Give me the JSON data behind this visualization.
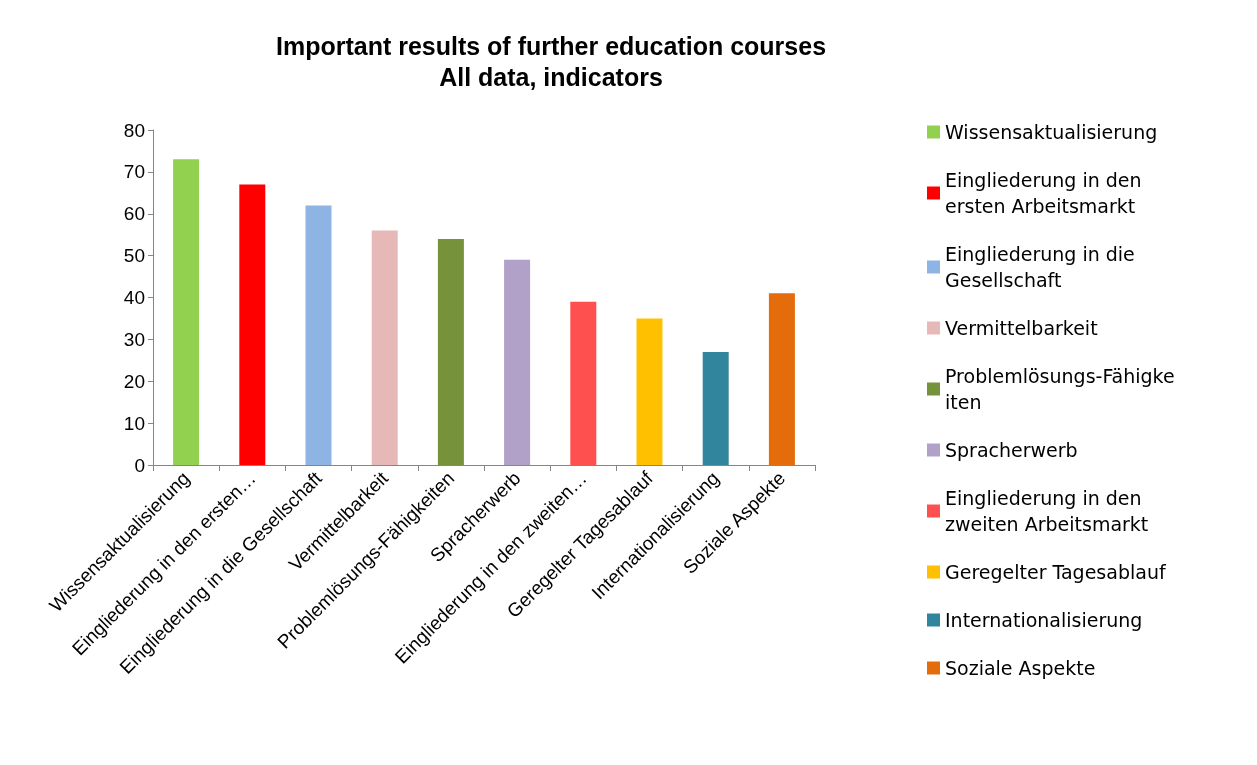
{
  "chart_data": {
    "type": "bar",
    "title": "Important results of further education courses",
    "subtitle": "All data, indicators",
    "categories": [
      "Wissensaktualisierung",
      "Eingliederung in den ersten…",
      "Eingliederung in die Gesellschaft",
      "Vermittelbarkeit",
      "Problemlösungs-Fähigkeiten",
      "Spracherwerb",
      "Eingliederung in den zweiten…",
      "Geregelter Tagesablauf",
      "Internationalisierung",
      "Soziale Aspekte"
    ],
    "stacked": true,
    "series": [
      {
        "name": "Wissensaktualisierung",
        "color": "#92d050",
        "values": [
          73,
          null,
          null,
          null,
          null,
          null,
          null,
          null,
          null,
          null
        ]
      },
      {
        "name": "Eingliederung in den ersten Arbeitsmarkt",
        "color": "#ff0000",
        "values": [
          null,
          67,
          null,
          null,
          null,
          null,
          null,
          null,
          null,
          null
        ]
      },
      {
        "name": "Eingliederung in die Gesellschaft",
        "color": "#8db4e2",
        "values": [
          null,
          null,
          62,
          null,
          null,
          null,
          null,
          null,
          null,
          null
        ]
      },
      {
        "name": "Vermittelbarkeit",
        "color": "#e6b9b8",
        "values": [
          null,
          null,
          null,
          56,
          null,
          null,
          null,
          null,
          null,
          null
        ]
      },
      {
        "name": "Problemlösungs-Fähigkeiten",
        "color": "#76933c",
        "values": [
          null,
          null,
          null,
          null,
          54,
          null,
          null,
          null,
          null,
          null
        ]
      },
      {
        "name": "Spracherwerb",
        "color": "#b1a0c7",
        "values": [
          null,
          null,
          null,
          null,
          null,
          49,
          null,
          null,
          null,
          null
        ]
      },
      {
        "name": "Eingliederung in den zweiten Arbeitsmarkt",
        "color": "#ff5050",
        "values": [
          null,
          null,
          null,
          null,
          null,
          null,
          39,
          null,
          null,
          null
        ]
      },
      {
        "name": "Geregelter Tagesablauf",
        "color": "#ffc000",
        "values": [
          null,
          null,
          null,
          null,
          null,
          null,
          null,
          35,
          null,
          null
        ]
      },
      {
        "name": "Internationalisierung",
        "color": "#31859c",
        "values": [
          null,
          null,
          null,
          null,
          null,
          null,
          null,
          null,
          27,
          null
        ]
      },
      {
        "name": "Soziale Aspekte",
        "color": "#e46c0a",
        "values": [
          null,
          null,
          null,
          null,
          null,
          null,
          null,
          null,
          null,
          41
        ]
      }
    ],
    "ylim": [
      0,
      80
    ],
    "yticks": [
      0,
      10,
      20,
      30,
      40,
      50,
      60,
      70,
      80
    ],
    "grid": false,
    "legend": "right"
  }
}
